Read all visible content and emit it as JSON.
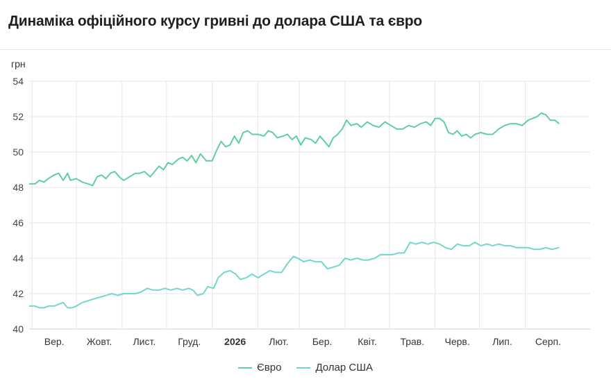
{
  "header": {
    "title": "Динаміка офіційного курсу гривні до долара США та євро"
  },
  "chart_data": {
    "type": "line",
    "title": "Динаміка офіційного курсу гривні до долара США та євро",
    "ylabel": "грн",
    "ylim": [
      40,
      54
    ],
    "yticks": [
      40,
      42,
      44,
      46,
      48,
      50,
      52,
      54
    ],
    "grid": true,
    "legend_position": "bottom-center",
    "x_range": [
      "2025-08-30",
      "2026-09-14"
    ],
    "x_tick_labels": [
      {
        "label": "Вер.",
        "date": "2025-09-01",
        "bold": false
      },
      {
        "label": "Жовт.",
        "date": "2025-10-01",
        "bold": false
      },
      {
        "label": "Лист.",
        "date": "2025-11-01",
        "bold": false
      },
      {
        "label": "Груд.",
        "date": "2025-12-01",
        "bold": false
      },
      {
        "label": "2026",
        "date": "2026-01-01",
        "bold": true
      },
      {
        "label": "Лют.",
        "date": "2026-02-01",
        "bold": false
      },
      {
        "label": "Бер.",
        "date": "2026-03-01",
        "bold": false
      },
      {
        "label": "Квіт.",
        "date": "2026-04-01",
        "bold": false
      },
      {
        "label": "Трав.",
        "date": "2026-05-01",
        "bold": false
      },
      {
        "label": "Черв.",
        "date": "2026-06-01",
        "bold": false
      },
      {
        "label": "Лип.",
        "date": "2026-07-01",
        "bold": false
      },
      {
        "label": "Серп.",
        "date": "2026-08-01",
        "bold": false
      }
    ],
    "series": [
      {
        "name": "Євро",
        "color": "#5fcf9f",
        "points": [
          [
            "2025-08-30",
            48.2
          ],
          [
            "2025-09-03",
            48.2
          ],
          [
            "2025-09-06",
            48.4
          ],
          [
            "2025-09-09",
            48.3
          ],
          [
            "2025-09-12",
            48.5
          ],
          [
            "2025-09-16",
            48.7
          ],
          [
            "2025-09-19",
            48.8
          ],
          [
            "2025-09-22",
            48.4
          ],
          [
            "2025-09-25",
            48.8
          ],
          [
            "2025-09-27",
            48.4
          ],
          [
            "2025-10-01",
            48.5
          ],
          [
            "2025-10-05",
            48.3
          ],
          [
            "2025-10-09",
            48.2
          ],
          [
            "2025-10-12",
            48.1
          ],
          [
            "2025-10-15",
            48.6
          ],
          [
            "2025-10-18",
            48.7
          ],
          [
            "2025-10-21",
            48.5
          ],
          [
            "2025-10-24",
            48.8
          ],
          [
            "2025-10-27",
            48.9
          ],
          [
            "2025-10-30",
            48.6
          ],
          [
            "2025-11-02",
            48.4
          ],
          [
            "2025-11-06",
            48.6
          ],
          [
            "2025-11-10",
            48.8
          ],
          [
            "2025-11-13",
            48.8
          ],
          [
            "2025-11-16",
            48.9
          ],
          [
            "2025-11-20",
            48.6
          ],
          [
            "2025-11-23",
            48.9
          ],
          [
            "2025-11-26",
            49.2
          ],
          [
            "2025-11-29",
            49.0
          ],
          [
            "2025-12-02",
            49.4
          ],
          [
            "2025-12-05",
            49.3
          ],
          [
            "2025-12-09",
            49.6
          ],
          [
            "2025-12-12",
            49.7
          ],
          [
            "2025-12-15",
            49.5
          ],
          [
            "2025-12-18",
            49.8
          ],
          [
            "2025-12-21",
            49.4
          ],
          [
            "2025-12-24",
            49.9
          ],
          [
            "2025-12-28",
            49.5
          ],
          [
            "2026-01-01",
            49.5
          ],
          [
            "2026-01-04",
            50.1
          ],
          [
            "2026-01-07",
            50.6
          ],
          [
            "2026-01-10",
            50.3
          ],
          [
            "2026-01-13",
            50.4
          ],
          [
            "2026-01-16",
            50.9
          ],
          [
            "2026-01-19",
            50.5
          ],
          [
            "2026-01-22",
            51.1
          ],
          [
            "2026-01-25",
            51.2
          ],
          [
            "2026-01-28",
            51.0
          ],
          [
            "2026-02-01",
            51.0
          ],
          [
            "2026-02-05",
            50.9
          ],
          [
            "2026-02-08",
            51.2
          ],
          [
            "2026-02-11",
            51.1
          ],
          [
            "2026-02-14",
            50.8
          ],
          [
            "2026-02-18",
            50.9
          ],
          [
            "2026-02-21",
            51.0
          ],
          [
            "2026-02-24",
            50.7
          ],
          [
            "2026-02-27",
            50.9
          ],
          [
            "2026-03-02",
            50.4
          ],
          [
            "2026-03-05",
            50.8
          ],
          [
            "2026-03-09",
            50.7
          ],
          [
            "2026-03-12",
            50.5
          ],
          [
            "2026-03-15",
            50.9
          ],
          [
            "2026-03-18",
            50.6
          ],
          [
            "2026-03-21",
            50.3
          ],
          [
            "2026-03-24",
            50.8
          ],
          [
            "2026-03-27",
            51.0
          ],
          [
            "2026-03-30",
            51.3
          ],
          [
            "2026-04-02",
            51.8
          ],
          [
            "2026-04-05",
            51.5
          ],
          [
            "2026-04-09",
            51.6
          ],
          [
            "2026-04-12",
            51.4
          ],
          [
            "2026-04-16",
            51.7
          ],
          [
            "2026-04-20",
            51.5
          ],
          [
            "2026-04-24",
            51.4
          ],
          [
            "2026-04-28",
            51.7
          ],
          [
            "2026-05-02",
            51.5
          ],
          [
            "2026-05-06",
            51.3
          ],
          [
            "2026-05-10",
            51.3
          ],
          [
            "2026-05-14",
            51.5
          ],
          [
            "2026-05-18",
            51.4
          ],
          [
            "2026-05-22",
            51.6
          ],
          [
            "2026-05-26",
            51.7
          ],
          [
            "2026-05-29",
            51.5
          ],
          [
            "2026-06-01",
            51.9
          ],
          [
            "2026-06-04",
            51.9
          ],
          [
            "2026-06-07",
            51.7
          ],
          [
            "2026-06-10",
            51.1
          ],
          [
            "2026-06-13",
            51.0
          ],
          [
            "2026-06-16",
            51.2
          ],
          [
            "2026-06-19",
            50.9
          ],
          [
            "2026-06-22",
            51.0
          ],
          [
            "2026-06-25",
            50.8
          ],
          [
            "2026-06-28",
            51.0
          ],
          [
            "2026-07-02",
            51.1
          ],
          [
            "2026-07-06",
            51.0
          ],
          [
            "2026-07-10",
            51.0
          ],
          [
            "2026-07-14",
            51.3
          ],
          [
            "2026-07-18",
            51.5
          ],
          [
            "2026-07-22",
            51.6
          ],
          [
            "2026-07-26",
            51.6
          ],
          [
            "2026-07-30",
            51.5
          ],
          [
            "2026-08-03",
            51.8
          ],
          [
            "2026-08-06",
            51.9
          ],
          [
            "2026-08-09",
            52.0
          ],
          [
            "2026-08-12",
            52.2
          ],
          [
            "2026-08-15",
            52.1
          ],
          [
            "2026-08-18",
            51.8
          ],
          [
            "2026-08-21",
            51.8
          ],
          [
            "2026-08-24",
            51.6
          ]
        ]
      },
      {
        "name": "Долар США",
        "color": "#72d7cb",
        "points": [
          [
            "2025-08-30",
            41.3
          ],
          [
            "2025-09-03",
            41.3
          ],
          [
            "2025-09-06",
            41.2
          ],
          [
            "2025-09-09",
            41.2
          ],
          [
            "2025-09-12",
            41.3
          ],
          [
            "2025-09-16",
            41.3
          ],
          [
            "2025-09-19",
            41.4
          ],
          [
            "2025-09-22",
            41.5
          ],
          [
            "2025-09-25",
            41.2
          ],
          [
            "2025-09-28",
            41.2
          ],
          [
            "2025-10-01",
            41.3
          ],
          [
            "2025-10-05",
            41.5
          ],
          [
            "2025-10-09",
            41.6
          ],
          [
            "2025-10-13",
            41.7
          ],
          [
            "2025-10-17",
            41.8
          ],
          [
            "2025-10-21",
            41.9
          ],
          [
            "2025-10-25",
            42.0
          ],
          [
            "2025-10-29",
            41.9
          ],
          [
            "2025-11-02",
            42.0
          ],
          [
            "2025-11-06",
            42.0
          ],
          [
            "2025-11-10",
            42.0
          ],
          [
            "2025-11-14",
            42.1
          ],
          [
            "2025-11-18",
            42.3
          ],
          [
            "2025-11-22",
            42.2
          ],
          [
            "2025-11-26",
            42.2
          ],
          [
            "2025-11-30",
            42.3
          ],
          [
            "2025-12-04",
            42.2
          ],
          [
            "2025-12-08",
            42.3
          ],
          [
            "2025-12-12",
            42.2
          ],
          [
            "2025-12-16",
            42.3
          ],
          [
            "2025-12-19",
            42.2
          ],
          [
            "2025-12-22",
            41.9
          ],
          [
            "2025-12-26",
            42.0
          ],
          [
            "2025-12-29",
            42.4
          ],
          [
            "2026-01-02",
            42.3
          ],
          [
            "2026-01-05",
            42.9
          ],
          [
            "2026-01-09",
            43.2
          ],
          [
            "2026-01-13",
            43.3
          ],
          [
            "2026-01-17",
            43.1
          ],
          [
            "2026-01-20",
            42.8
          ],
          [
            "2026-01-24",
            42.9
          ],
          [
            "2026-01-28",
            43.1
          ],
          [
            "2026-02-01",
            42.9
          ],
          [
            "2026-02-05",
            43.1
          ],
          [
            "2026-02-09",
            43.3
          ],
          [
            "2026-02-13",
            43.2
          ],
          [
            "2026-02-17",
            43.2
          ],
          [
            "2026-02-21",
            43.7
          ],
          [
            "2026-02-25",
            44.1
          ],
          [
            "2026-02-28",
            44.0
          ],
          [
            "2026-03-04",
            43.8
          ],
          [
            "2026-03-08",
            43.9
          ],
          [
            "2026-03-12",
            43.8
          ],
          [
            "2026-03-16",
            43.8
          ],
          [
            "2026-03-20",
            43.4
          ],
          [
            "2026-03-24",
            43.5
          ],
          [
            "2026-03-28",
            43.6
          ],
          [
            "2026-04-01",
            44.0
          ],
          [
            "2026-04-05",
            43.9
          ],
          [
            "2026-04-09",
            44.0
          ],
          [
            "2026-04-13",
            43.9
          ],
          [
            "2026-04-17",
            43.9
          ],
          [
            "2026-04-21",
            44.0
          ],
          [
            "2026-04-25",
            44.2
          ],
          [
            "2026-04-29",
            44.2
          ],
          [
            "2026-05-03",
            44.2
          ],
          [
            "2026-05-07",
            44.3
          ],
          [
            "2026-05-11",
            44.3
          ],
          [
            "2026-05-15",
            44.9
          ],
          [
            "2026-05-19",
            44.8
          ],
          [
            "2026-05-23",
            44.9
          ],
          [
            "2026-05-27",
            44.8
          ],
          [
            "2026-05-31",
            44.9
          ],
          [
            "2026-06-04",
            44.8
          ],
          [
            "2026-06-08",
            44.6
          ],
          [
            "2026-06-12",
            44.5
          ],
          [
            "2026-06-16",
            44.8
          ],
          [
            "2026-06-20",
            44.7
          ],
          [
            "2026-06-24",
            44.7
          ],
          [
            "2026-06-28",
            44.9
          ],
          [
            "2026-07-02",
            44.7
          ],
          [
            "2026-07-06",
            44.8
          ],
          [
            "2026-07-10",
            44.7
          ],
          [
            "2026-07-14",
            44.8
          ],
          [
            "2026-07-18",
            44.7
          ],
          [
            "2026-07-22",
            44.7
          ],
          [
            "2026-07-26",
            44.6
          ],
          [
            "2026-07-30",
            44.6
          ],
          [
            "2026-08-03",
            44.6
          ],
          [
            "2026-08-07",
            44.5
          ],
          [
            "2026-08-11",
            44.5
          ],
          [
            "2026-08-15",
            44.6
          ],
          [
            "2026-08-19",
            44.5
          ],
          [
            "2026-08-24",
            44.6
          ]
        ]
      }
    ]
  }
}
